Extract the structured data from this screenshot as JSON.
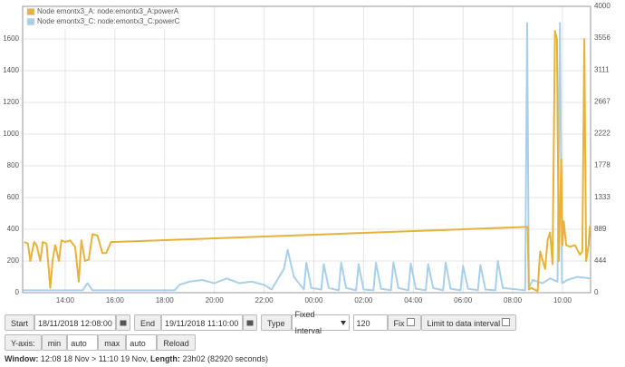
{
  "chart_data": {
    "type": "line",
    "legend": "top-left",
    "grid": true,
    "xlim": [
      12.29,
      35.13
    ],
    "xticks": [
      {
        "value": 14,
        "label": "14:00"
      },
      {
        "value": 16,
        "label": "16:00"
      },
      {
        "value": 18,
        "label": "18:00"
      },
      {
        "value": 20,
        "label": "20:00"
      },
      {
        "value": 22,
        "label": "22:00"
      },
      {
        "value": 24,
        "label": "00:00"
      },
      {
        "value": 26,
        "label": "02:00"
      },
      {
        "value": 28,
        "label": "04:00"
      },
      {
        "value": 30,
        "label": "06:00"
      },
      {
        "value": 32,
        "label": "08:00"
      },
      {
        "value": 34,
        "label": "10:00"
      }
    ],
    "ylim": [
      0,
      1806
    ],
    "yticks": [
      0,
      200,
      400,
      600,
      800,
      1000,
      1200,
      1400,
      1600
    ],
    "y2lim": [
      0,
      4000
    ],
    "y2ticks": [
      0,
      444,
      889,
      1333,
      1778,
      2222,
      2667,
      3111,
      3556,
      4000
    ],
    "series": [
      {
        "name": "Node emontx3_C: node:emontx3_C:powerC",
        "color": "#a9d0ea",
        "x": [
          12.3,
          14.7,
          14.9,
          15.1,
          16.0,
          18.4,
          18.6,
          19.0,
          19.5,
          20.0,
          20.5,
          21.0,
          21.5,
          22.0,
          22.3,
          22.8,
          22.95,
          23.2,
          23.6,
          23.7,
          23.9,
          24.3,
          24.4,
          24.6,
          25.0,
          25.1,
          25.3,
          25.7,
          25.8,
          26.0,
          26.4,
          26.5,
          26.7,
          27.1,
          27.2,
          27.4,
          27.8,
          27.9,
          28.1,
          28.5,
          28.6,
          28.8,
          29.2,
          29.3,
          29.5,
          29.9,
          30.0,
          30.2,
          30.6,
          30.7,
          30.9,
          31.3,
          31.4,
          31.6,
          32.5,
          32.58,
          32.65,
          32.8,
          33.2,
          33.5,
          33.8,
          33.9,
          33.98,
          34.2,
          34.6,
          35.1
        ],
        "values": [
          15,
          15,
          60,
          15,
          15,
          15,
          50,
          70,
          80,
          60,
          90,
          60,
          70,
          50,
          20,
          150,
          270,
          100,
          20,
          190,
          30,
          20,
          180,
          30,
          15,
          190,
          30,
          15,
          180,
          20,
          15,
          190,
          25,
          15,
          190,
          30,
          15,
          185,
          25,
          15,
          180,
          30,
          15,
          190,
          25,
          15,
          170,
          25,
          15,
          175,
          20,
          15,
          200,
          30,
          15,
          1700,
          30,
          80,
          60,
          90,
          70,
          1700,
          60,
          80,
          100,
          90
        ]
      },
      {
        "name": "Node emontx3_A: node:emontx3_A:powerA",
        "color": "#e8b23a",
        "x": [
          12.35,
          12.5,
          12.6,
          12.75,
          12.85,
          13.0,
          13.1,
          13.25,
          13.4,
          13.5,
          13.6,
          13.75,
          13.85,
          14.0,
          14.2,
          14.4,
          14.55,
          14.65,
          14.8,
          14.95,
          15.1,
          15.3,
          15.5,
          15.65,
          15.85,
          16.0,
          32.6,
          32.65,
          32.75,
          33.0,
          33.1,
          33.3,
          33.4,
          33.5,
          33.6,
          33.7,
          33.78,
          33.85,
          33.95,
          34.0,
          34.05,
          34.15,
          34.3,
          34.5,
          34.7,
          34.8,
          34.88,
          34.95,
          35.05,
          35.1
        ],
        "values": [
          320,
          310,
          200,
          320,
          300,
          200,
          320,
          310,
          30,
          210,
          300,
          200,
          330,
          320,
          330,
          290,
          70,
          330,
          200,
          210,
          370,
          360,
          250,
          250,
          320,
          320,
          415,
          20,
          30,
          10,
          260,
          150,
          330,
          380,
          180,
          1650,
          1600,
          200,
          840,
          300,
          450,
          300,
          290,
          300,
          240,
          260,
          1600,
          200,
          300,
          420
        ]
      }
    ]
  },
  "controls": {
    "start_label": "Start",
    "start_value": "18/11/2018 12:08:00",
    "end_label": "End",
    "end_value": "19/11/2018 11:10:00",
    "type_label": "Type",
    "type_value": "Fixed Interval",
    "interval": "120",
    "fix_label": "Fix",
    "limit_label": "Limit to data interval",
    "yaxis_label": "Y-axis:",
    "min_label": "min",
    "min_value": "auto",
    "max_label": "max",
    "max_value": "auto",
    "reload": "Reload"
  },
  "window": {
    "label": "Window:",
    "range": "12:08 18 Nov > 11:10 19 Nov,",
    "length_label": "Length:",
    "length": "23h02 (82920 seconds)"
  }
}
